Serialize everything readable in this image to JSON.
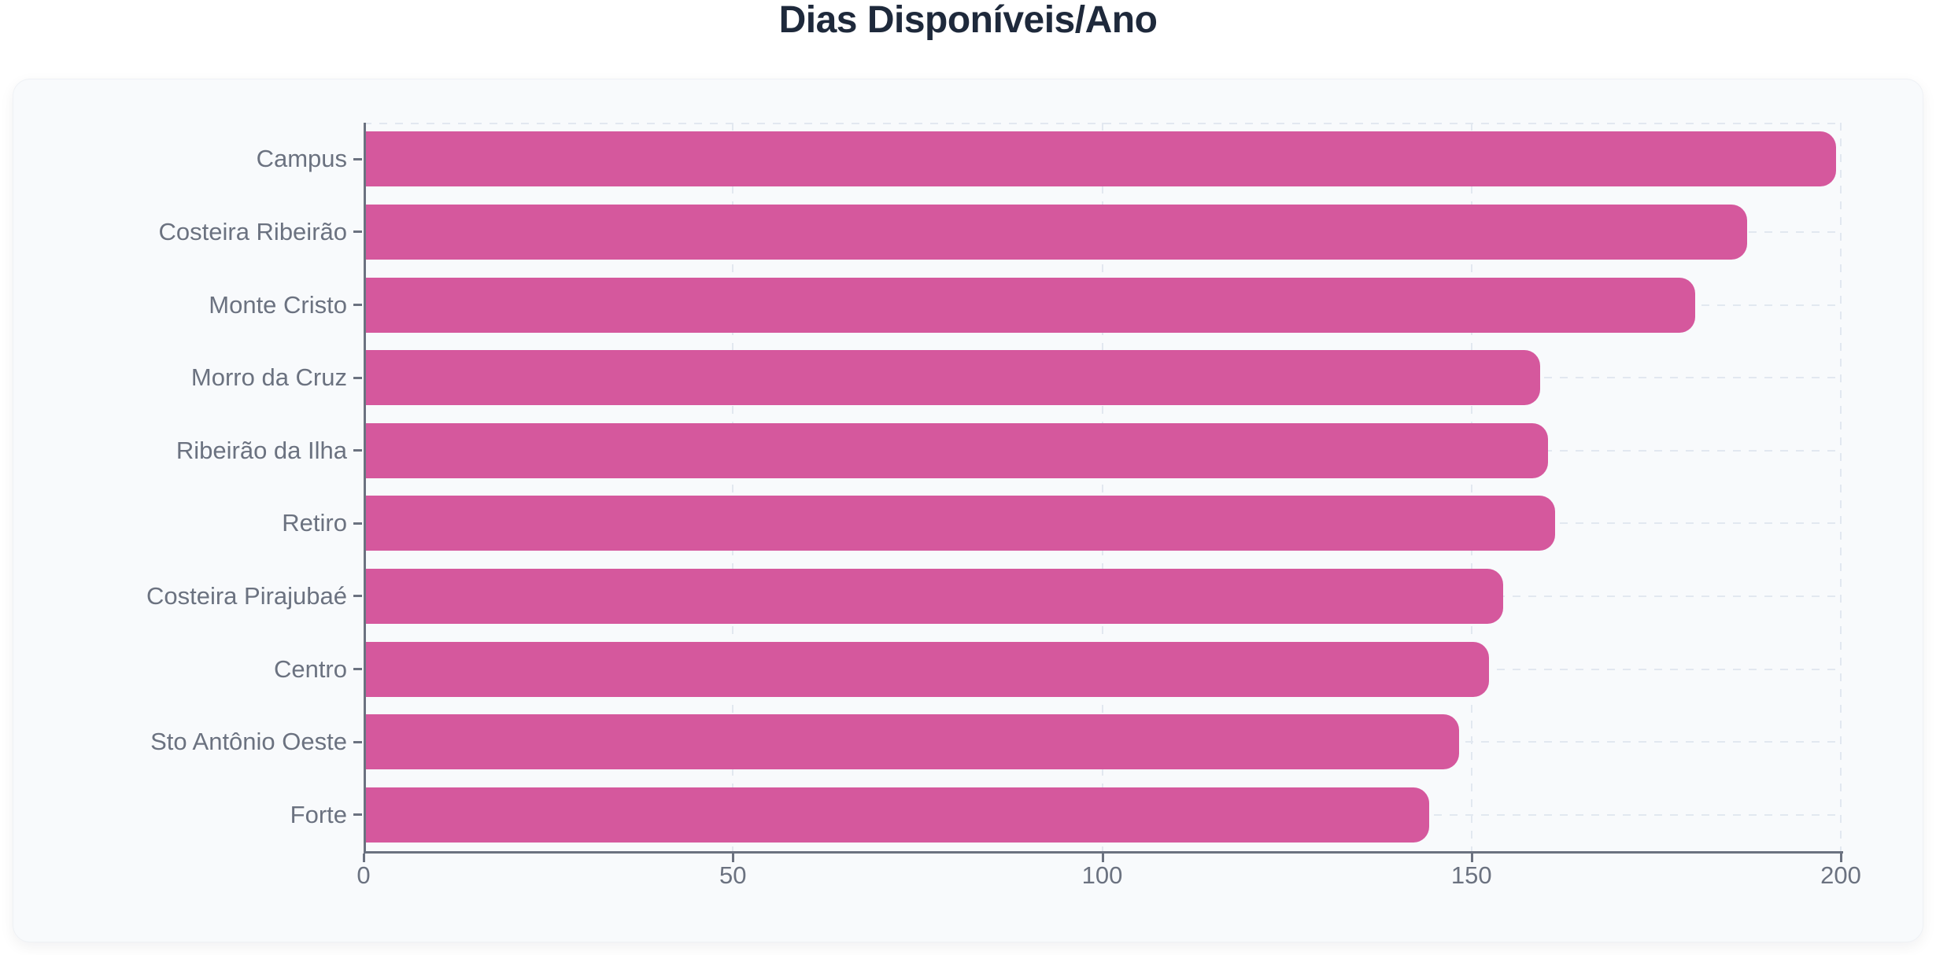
{
  "page": {
    "title": "Dias Disponíveis/Ano"
  },
  "chart_data": {
    "type": "bar",
    "orientation": "horizontal",
    "title": "Dias Disponíveis/Ano",
    "categories": [
      "Campus",
      "Costeira Ribeirão",
      "Monte Cristo",
      "Morro da Cruz",
      "Ribeirão da Ilha",
      "Retiro",
      "Costeira Pirajubaé",
      "Centro",
      "Sto Antônio Oeste",
      "Forte"
    ],
    "values": [
      199,
      187,
      180,
      159,
      160,
      161,
      154,
      152,
      148,
      144
    ],
    "xlabel": "",
    "ylabel": "",
    "xlim": [
      0,
      200
    ],
    "xticks": [
      0,
      50,
      100,
      150,
      200
    ],
    "grid": "dashed-both-directions",
    "legend": "none"
  },
  "colors": {
    "bar": "#d5589d",
    "card_background": "#f8fafc",
    "page_background": "#ffffff",
    "title_text": "#1e293b",
    "axis_text": "#6b7280",
    "axis_line": "#6b7280",
    "gridline": "#e2e8f0"
  }
}
